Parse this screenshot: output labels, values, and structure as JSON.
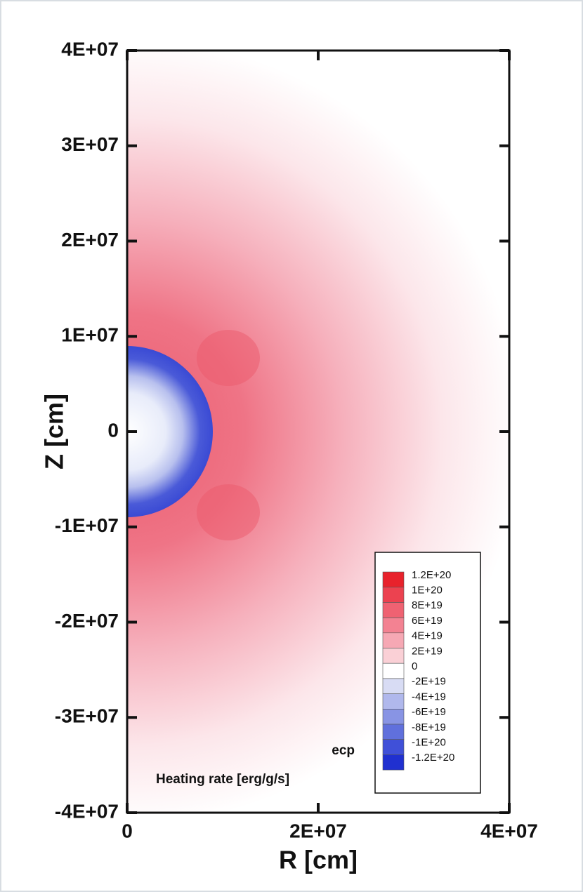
{
  "chart_data": {
    "type": "contour",
    "x_label": "R [cm]",
    "y_label": "Z [cm]",
    "xlim": [
      0,
      40000000
    ],
    "ylim": [
      -40000000,
      40000000
    ],
    "xticks": [
      0,
      {
        "value": 20000000,
        "label": "2E+07"
      },
      {
        "value": 40000000,
        "label": "4E+07"
      }
    ],
    "yticks": [
      {
        "value": -40000000,
        "label": "-4E+07"
      },
      {
        "value": -30000000,
        "label": "-3E+07"
      },
      {
        "value": -20000000,
        "label": "-2E+07"
      },
      {
        "value": -10000000,
        "label": "-1E+07"
      },
      0,
      {
        "value": 10000000,
        "label": "1E+07"
      },
      {
        "value": 20000000,
        "label": "2E+07"
      },
      {
        "value": 30000000,
        "label": "3E+07"
      },
      {
        "value": 40000000,
        "label": "4E+07"
      }
    ],
    "colorbar": {
      "variable": "ecp",
      "title": "Heating rate [erg/g/s]",
      "levels": [
        {
          "value": 120000000000000000000,
          "label": "1.2E+20",
          "color": "#e8222c"
        },
        {
          "value": 100000000000000000000,
          "label": "1E+20",
          "color": "#ec4250"
        },
        {
          "value": 80000000000000000000,
          "label": "8E+19",
          "color": "#ef6272"
        },
        {
          "value": 60000000000000000000,
          "label": "6E+19",
          "color": "#f38292"
        },
        {
          "value": 40000000000000000000,
          "label": "4E+19",
          "color": "#f6a8b4"
        },
        {
          "value": 20000000000000000000,
          "label": "2E+19",
          "color": "#fad0d6"
        },
        {
          "value": 0,
          "label": "0",
          "color": "#ffffff"
        },
        {
          "value": -20000000000000000000,
          "label": "-2E+19",
          "color": "#d8dcf4"
        },
        {
          "value": -40000000000000000000,
          "label": "-4E+19",
          "color": "#b0b8ec"
        },
        {
          "value": -60000000000000000000,
          "label": "-6E+19",
          "color": "#8894e4"
        },
        {
          "value": -80000000000000000000,
          "label": "-8E+19",
          "color": "#6070dc"
        },
        {
          "value": -100000000000000000000,
          "label": "-1E+20",
          "color": "#4050d8"
        },
        {
          "value": -120000000000000000000,
          "label": "-1.2E+20",
          "color": "#2030d0"
        }
      ]
    }
  }
}
